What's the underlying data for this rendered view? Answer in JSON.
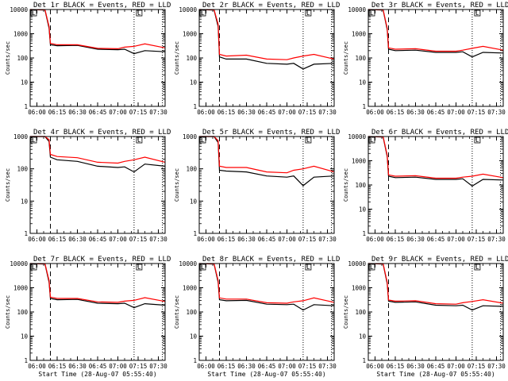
{
  "figure": {
    "background": "#ffffff",
    "frame_color": "#000000",
    "events_color": "#000000",
    "lld_color": "#ff0000"
  },
  "chart_data": [
    {
      "type": "line",
      "title": "Det 1r BLACK = Events, RED = LLD",
      "ylabel": "Counts/sec",
      "xlabel": "",
      "yscale": "log",
      "ylim": [
        1,
        10000
      ],
      "xlim": [
        "05:55",
        "07:35"
      ],
      "x_ticks": [
        "06:00",
        "06:15",
        "06:30",
        "06:45",
        "07:00",
        "07:15",
        "07:30"
      ],
      "y_ticks": [
        "1",
        "10",
        "100",
        "1000",
        "10000"
      ],
      "markers": {
        "dashed": "06:10",
        "dotted": [
          "07:12",
          "07:33"
        ]
      },
      "box_labels": [
        "L",
        "L"
      ],
      "x": [
        "05:55",
        "06:06",
        "06:09",
        "06:10",
        "06:15",
        "06:30",
        "06:45",
        "07:00",
        "07:05",
        "07:12",
        "07:20",
        "07:35"
      ],
      "series": [
        {
          "name": "BLACK = Events",
          "values": [
            10000,
            9500,
            1700,
            350,
            320,
            330,
            230,
            220,
            230,
            150,
            200,
            180
          ]
        },
        {
          "name": "RED = LLD",
          "values": [
            10000,
            9800,
            2000,
            400,
            350,
            350,
            250,
            240,
            280,
            300,
            380,
            260
          ]
        }
      ]
    },
    {
      "type": "line",
      "title": "Det 2r BLACK = Events, RED = LLD",
      "ylabel": "Counts/sec",
      "xlabel": "",
      "yscale": "log",
      "ylim": [
        1,
        10000
      ],
      "xlim": [
        "05:55",
        "07:35"
      ],
      "x_ticks": [
        "06:00",
        "06:15",
        "06:30",
        "06:45",
        "07:00",
        "07:15",
        "07:30"
      ],
      "y_ticks": [
        "1",
        "10",
        "100",
        "1000",
        "10000"
      ],
      "markers": {
        "dashed": "06:10",
        "dotted": [
          "07:12",
          "07:33"
        ]
      },
      "box_labels": [
        "L",
        "L"
      ],
      "x": [
        "05:55",
        "06:06",
        "06:09",
        "06:10",
        "06:15",
        "06:30",
        "06:45",
        "07:00",
        "07:05",
        "07:12",
        "07:20",
        "07:35"
      ],
      "series": [
        {
          "name": "BLACK = Events",
          "values": [
            10000,
            9500,
            2000,
            110,
            90,
            90,
            60,
            55,
            60,
            35,
            55,
            60
          ]
        },
        {
          "name": "RED = LLD",
          "values": [
            10000,
            9800,
            2500,
            140,
            120,
            130,
            90,
            85,
            100,
            120,
            140,
            90
          ]
        }
      ]
    },
    {
      "type": "line",
      "title": "Det 3r BLACK = Events, RED = LLD",
      "ylabel": "Counts/sec",
      "xlabel": "",
      "yscale": "log",
      "ylim": [
        1,
        10000
      ],
      "xlim": [
        "05:55",
        "07:35"
      ],
      "x_ticks": [
        "06:00",
        "06:15",
        "06:30",
        "06:45",
        "07:00",
        "07:15",
        "07:30"
      ],
      "y_ticks": [
        "1",
        "10",
        "100",
        "1000",
        "10000"
      ],
      "markers": {
        "dashed": "06:10",
        "dotted": [
          "07:12",
          "07:33"
        ]
      },
      "box_labels": [
        "L",
        "L"
      ],
      "x": [
        "05:55",
        "06:06",
        "06:09",
        "06:10",
        "06:15",
        "06:30",
        "06:45",
        "07:00",
        "07:05",
        "07:12",
        "07:20",
        "07:35"
      ],
      "series": [
        {
          "name": "BLACK = Events",
          "values": [
            10000,
            9500,
            1500,
            230,
            200,
            210,
            170,
            170,
            180,
            110,
            170,
            160
          ]
        },
        {
          "name": "RED = LLD",
          "values": [
            10000,
            9800,
            1700,
            260,
            230,
            240,
            190,
            190,
            210,
            250,
            300,
            210
          ]
        }
      ]
    },
    {
      "type": "line",
      "title": "Det 4r BLACK = Events, RED = LLD",
      "ylabel": "Counts/sec",
      "xlabel": "",
      "yscale": "log",
      "ylim": [
        1,
        1000
      ],
      "xlim": [
        "05:55",
        "07:35"
      ],
      "x_ticks": [
        "06:00",
        "06:15",
        "06:30",
        "06:45",
        "07:00",
        "07:15",
        "07:30"
      ],
      "y_ticks": [
        "1",
        "10",
        "100",
        "1000"
      ],
      "markers": {
        "dashed": "06:10",
        "dotted": [
          "07:12",
          "07:33"
        ]
      },
      "box_labels": [
        "L",
        "L"
      ],
      "x": [
        "05:55",
        "06:06",
        "06:09",
        "06:10",
        "06:15",
        "06:30",
        "06:45",
        "07:00",
        "07:05",
        "07:12",
        "07:20",
        "07:35"
      ],
      "series": [
        {
          "name": "BLACK = Events",
          "values": [
            1000,
            1000,
            700,
            230,
            190,
            170,
            120,
            110,
            115,
            80,
            140,
            120
          ]
        },
        {
          "name": "RED = LLD",
          "values": [
            1000,
            1000,
            800,
            280,
            240,
            220,
            160,
            150,
            170,
            190,
            230,
            160
          ]
        }
      ]
    },
    {
      "type": "line",
      "title": "Det 5r BLACK = Events, RED = LLD",
      "ylabel": "Counts/sec",
      "xlabel": "",
      "yscale": "log",
      "ylim": [
        1,
        1000
      ],
      "xlim": [
        "05:55",
        "07:35"
      ],
      "x_ticks": [
        "06:00",
        "06:15",
        "06:30",
        "06:45",
        "07:00",
        "07:15",
        "07:30"
      ],
      "y_ticks": [
        "1",
        "10",
        "100",
        "1000"
      ],
      "markers": {
        "dashed": "06:10",
        "dotted": [
          "07:12",
          "07:33"
        ]
      },
      "box_labels": [
        "L",
        "L"
      ],
      "x": [
        "05:55",
        "06:06",
        "06:09",
        "06:10",
        "06:15",
        "06:30",
        "06:45",
        "07:00",
        "07:05",
        "07:12",
        "07:20",
        "07:35"
      ],
      "series": [
        {
          "name": "BLACK = Events",
          "values": [
            1000,
            1000,
            650,
            90,
            85,
            80,
            60,
            55,
            60,
            30,
            55,
            60
          ]
        },
        {
          "name": "RED = LLD",
          "values": [
            1000,
            1000,
            750,
            120,
            110,
            110,
            80,
            75,
            90,
            100,
            120,
            80
          ]
        }
      ]
    },
    {
      "type": "line",
      "title": "Det 6r BLACK = Events, RED = LLD",
      "ylabel": "Counts/sec",
      "xlabel": "",
      "yscale": "log",
      "ylim": [
        1,
        10000
      ],
      "xlim": [
        "05:55",
        "07:35"
      ],
      "x_ticks": [
        "06:00",
        "06:15",
        "06:30",
        "06:45",
        "07:00",
        "07:15",
        "07:30"
      ],
      "y_ticks": [
        "1",
        "10",
        "100",
        "1000",
        "10000"
      ],
      "markers": {
        "dashed": "06:10",
        "dotted": [
          "07:12",
          "07:33"
        ]
      },
      "box_labels": [
        "L",
        "L"
      ],
      "x": [
        "05:55",
        "06:06",
        "06:09",
        "06:10",
        "06:15",
        "06:30",
        "06:45",
        "07:00",
        "07:05",
        "07:12",
        "07:20",
        "07:35"
      ],
      "series": [
        {
          "name": "BLACK = Events",
          "values": [
            10000,
            9500,
            1500,
            230,
            200,
            210,
            170,
            170,
            180,
            90,
            170,
            160
          ]
        },
        {
          "name": "RED = LLD",
          "values": [
            10000,
            9800,
            1700,
            260,
            230,
            240,
            190,
            190,
            210,
            230,
            280,
            200
          ]
        }
      ]
    },
    {
      "type": "line",
      "title": "Det 7r BLACK = Events, RED = LLD",
      "ylabel": "Counts/sec",
      "xlabel": "Start Time (28-Aug-07 05:55:40)",
      "yscale": "log",
      "ylim": [
        1,
        10000
      ],
      "xlim": [
        "05:55",
        "07:35"
      ],
      "x_ticks": [
        "06:00",
        "06:15",
        "06:30",
        "06:45",
        "07:00",
        "07:15",
        "07:30"
      ],
      "y_ticks": [
        "1",
        "10",
        "100",
        "1000",
        "10000"
      ],
      "markers": {
        "dashed": "06:10",
        "dotted": [
          "07:12",
          "07:33"
        ]
      },
      "box_labels": [
        "L",
        "L"
      ],
      "x": [
        "05:55",
        "06:06",
        "06:09",
        "06:10",
        "06:15",
        "06:30",
        "06:45",
        "07:00",
        "07:05",
        "07:12",
        "07:20",
        "07:35"
      ],
      "series": [
        {
          "name": "BLACK = Events",
          "values": [
            10000,
            9500,
            1700,
            360,
            320,
            330,
            230,
            220,
            230,
            150,
            220,
            190
          ]
        },
        {
          "name": "RED = LLD",
          "values": [
            10000,
            9800,
            2000,
            410,
            360,
            360,
            260,
            250,
            280,
            300,
            390,
            270
          ]
        }
      ]
    },
    {
      "type": "line",
      "title": "Det 8r BLACK = Events, RED = LLD",
      "ylabel": "Counts/sec",
      "xlabel": "Start Time (28-Aug-07 05:55:40)",
      "yscale": "log",
      "ylim": [
        1,
        10000
      ],
      "xlim": [
        "05:55",
        "07:35"
      ],
      "x_ticks": [
        "06:00",
        "06:15",
        "06:30",
        "06:45",
        "07:00",
        "07:15",
        "07:30"
      ],
      "y_ticks": [
        "1",
        "10",
        "100",
        "1000",
        "10000"
      ],
      "markers": {
        "dashed": "06:10",
        "dotted": [
          "07:12",
          "07:33"
        ]
      },
      "box_labels": [
        "L",
        "L"
      ],
      "x": [
        "05:55",
        "06:06",
        "06:09",
        "06:10",
        "06:15",
        "06:30",
        "06:45",
        "07:00",
        "07:05",
        "07:12",
        "07:20",
        "07:35"
      ],
      "series": [
        {
          "name": "BLACK = Events",
          "values": [
            10000,
            9500,
            1700,
            320,
            290,
            300,
            210,
            200,
            210,
            120,
            200,
            180
          ]
        },
        {
          "name": "RED = LLD",
          "values": [
            10000,
            9800,
            2000,
            380,
            340,
            340,
            240,
            230,
            260,
            290,
            380,
            250
          ]
        }
      ]
    },
    {
      "type": "line",
      "title": "Det 9r BLACK = Events, RED = LLD",
      "ylabel": "Counts/sec",
      "xlabel": "Start Time (28-Aug-07 05:55:40)",
      "yscale": "log",
      "ylim": [
        1,
        10000
      ],
      "xlim": [
        "05:55",
        "07:35"
      ],
      "x_ticks": [
        "06:00",
        "06:15",
        "06:30",
        "06:45",
        "07:00",
        "07:15",
        "07:30"
      ],
      "y_ticks": [
        "1",
        "10",
        "100",
        "1000",
        "10000"
      ],
      "markers": {
        "dashed": "06:10",
        "dotted": [
          "07:12",
          "07:33"
        ]
      },
      "box_labels": [
        "L",
        "L"
      ],
      "x": [
        "05:55",
        "06:06",
        "06:09",
        "06:10",
        "06:15",
        "06:30",
        "06:45",
        "07:00",
        "07:05",
        "07:12",
        "07:20",
        "07:35"
      ],
      "series": [
        {
          "name": "BLACK = Events",
          "values": [
            10000,
            9500,
            1500,
            280,
            250,
            260,
            190,
            180,
            190,
            120,
            180,
            170
          ]
        },
        {
          "name": "RED = LLD",
          "values": [
            10000,
            9800,
            1700,
            310,
            280,
            290,
            220,
            210,
            240,
            270,
            320,
            230
          ]
        }
      ]
    }
  ]
}
